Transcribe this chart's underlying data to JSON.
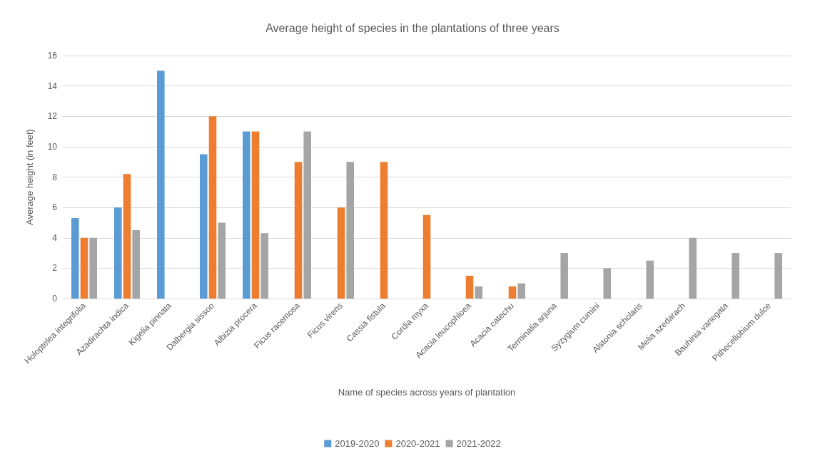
{
  "chart_data": {
    "type": "bar",
    "title": "Average height of species in the plantations of three years",
    "xlabel": "Name of species across years of plantation",
    "ylabel": "Average height (in feet)",
    "categories": [
      "Holoptelea integrifolia",
      "Azadirachta indica",
      "Kigelia pinnata",
      "Dalbergia sissoo",
      "Albizia procera",
      "Ficus racemosa",
      "Ficus virens",
      "Cassia fistula",
      "Cordia myxa",
      "Acacia leucophloea",
      "Acacia catechu",
      "Terminalia arjuna",
      "Syzygium cumini",
      "Alstonia scholaris",
      "Melia azedarach",
      "Bauhinia variegata",
      "Pithecellobium dulce"
    ],
    "series": [
      {
        "name": "2019-2020",
        "color": "#5b9bd5",
        "values": [
          5.3,
          6,
          15,
          9.5,
          11,
          null,
          null,
          null,
          null,
          null,
          null,
          null,
          null,
          null,
          null,
          null,
          null
        ]
      },
      {
        "name": "2020-2021",
        "color": "#ed7d31",
        "values": [
          4,
          8.2,
          null,
          12,
          11,
          9,
          6,
          9,
          5.5,
          1.5,
          0.8,
          null,
          null,
          null,
          null,
          null,
          null
        ]
      },
      {
        "name": "2021-2022",
        "color": "#a5a5a5",
        "values": [
          4,
          4.5,
          null,
          5,
          4.3,
          11,
          9,
          null,
          null,
          0.8,
          1,
          3,
          2,
          2.5,
          4,
          3,
          3
        ]
      }
    ],
    "ylim": [
      0,
      16
    ],
    "yticks": [
      0,
      2,
      4,
      6,
      8,
      10,
      12,
      14,
      16
    ],
    "grid": "y",
    "legend": "bottom"
  }
}
